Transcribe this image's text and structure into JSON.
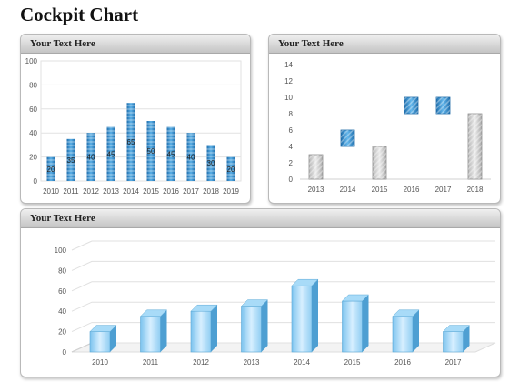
{
  "page": {
    "title": "Cockpit Chart"
  },
  "colors": {
    "blue": "#2d86c6",
    "blue_light": "#9fd3f4",
    "gray": "#d3d3d3",
    "header": "#d0d0d0"
  },
  "panels": [
    {
      "header": "Your Text Here"
    },
    {
      "header": "Your Text Here"
    },
    {
      "header": "Your Text Here"
    }
  ],
  "chart_data": [
    {
      "type": "bar",
      "categories": [
        "2010",
        "2011",
        "2012",
        "2013",
        "2014",
        "2015",
        "2016",
        "2017",
        "2018",
        "2019"
      ],
      "values": [
        20,
        35,
        40,
        45,
        65,
        50,
        45,
        40,
        30,
        20
      ],
      "data_labels": [
        "20",
        "35",
        "40",
        "45",
        "65",
        "50",
        "45",
        "40",
        "30",
        "20"
      ],
      "ylim": [
        0,
        100
      ],
      "yticks": [
        "0",
        "20",
        "40",
        "60",
        "80",
        "100"
      ],
      "grid": true
    },
    {
      "type": "bar",
      "subtype": "waterfall",
      "categories": [
        "2013",
        "2014",
        "2015",
        "2016",
        "2017",
        "2018"
      ],
      "bars": [
        {
          "start": 0,
          "end": 3,
          "style": "total"
        },
        {
          "start": 4,
          "end": 6,
          "style": "change"
        },
        {
          "start": 0,
          "end": 4,
          "style": "total"
        },
        {
          "start": 8,
          "end": 10,
          "style": "change"
        },
        {
          "start": 8,
          "end": 10,
          "style": "change"
        },
        {
          "start": 0,
          "end": 8,
          "style": "total"
        }
      ],
      "ylim": [
        0,
        14
      ],
      "yticks": [
        "0",
        "2",
        "4",
        "6",
        "8",
        "10",
        "12",
        "14"
      ],
      "grid": false
    },
    {
      "type": "bar",
      "subtype": "3d",
      "categories": [
        "2010",
        "2011",
        "2012",
        "2013",
        "2014",
        "2015",
        "2016",
        "2017"
      ],
      "values": [
        20,
        35,
        40,
        45,
        65,
        50,
        35,
        20
      ],
      "ylim": [
        0,
        100
      ],
      "yticks": [
        "0",
        "20",
        "40",
        "60",
        "80",
        "100"
      ],
      "grid": true
    }
  ]
}
